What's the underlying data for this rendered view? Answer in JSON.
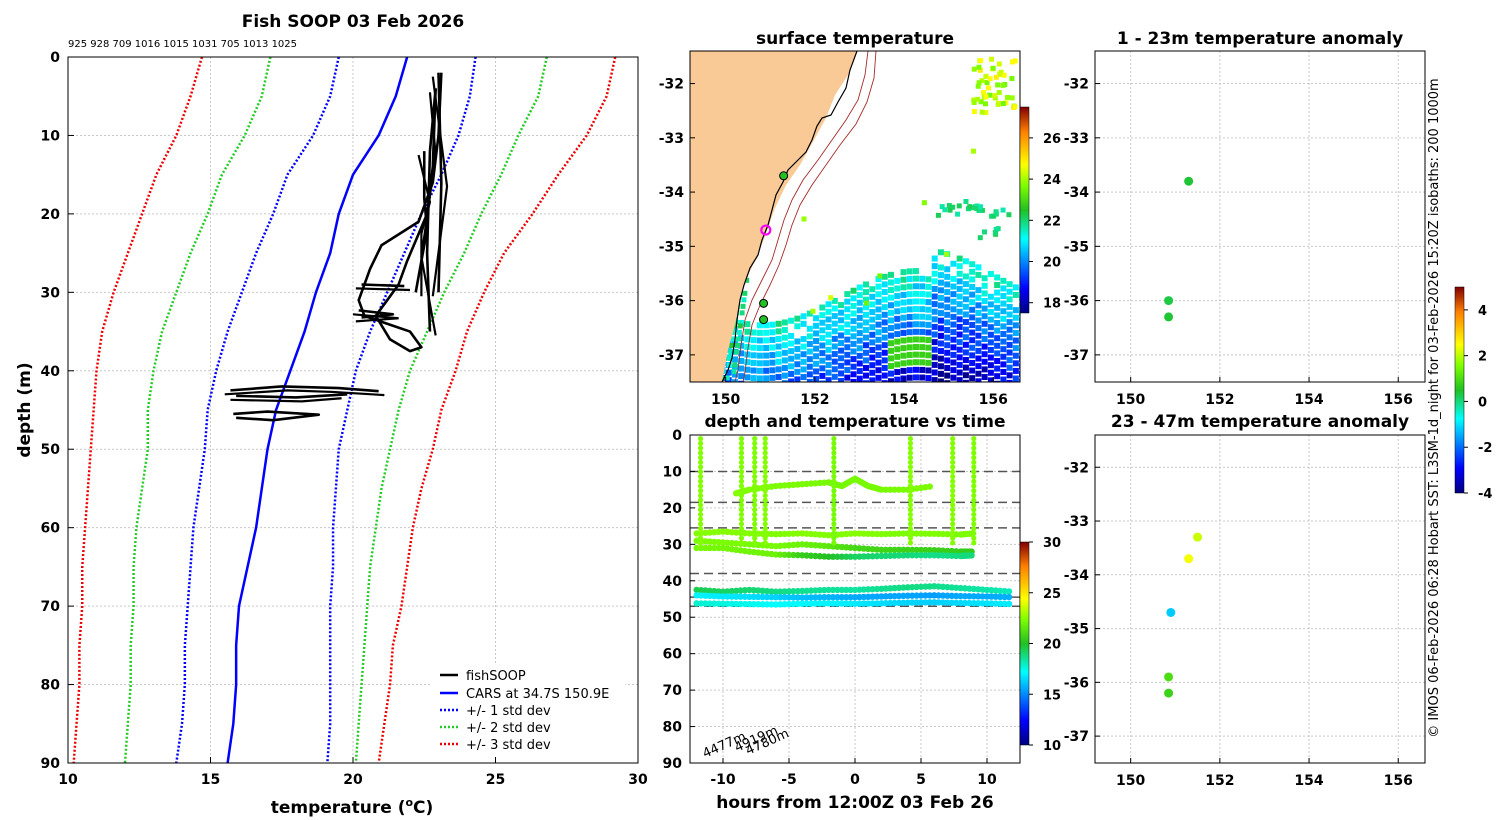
{
  "colors": {
    "fishsoop": "#000000",
    "cars": "#0000ff",
    "std1": "#0000ff",
    "std2": "#22cc22",
    "std3": "#ee0000",
    "land": "#f9c996",
    "isobath": "#a52a2a"
  },
  "chart_data": [
    {
      "type": "line",
      "id": "profile",
      "title": "Fish SOOP 03 Feb 2026",
      "subtitle": "925 928 709 1016 1015 1031 705 1013 1025",
      "xlabel": "temperature",
      "xunit": "(",
      "xunit_sup": "o",
      "xunit_end": "C)",
      "ylabel": "depth (m)",
      "xlim": [
        10,
        30
      ],
      "ylim": [
        0,
        90
      ],
      "xticks": [
        10,
        15,
        20,
        25,
        30
      ],
      "yticks": [
        0,
        10,
        20,
        30,
        40,
        50,
        60,
        70,
        80,
        90
      ],
      "legend": [
        "fishSOOP",
        "CARS at 34.7S 150.9E",
        "+/- 1 std dev",
        "+/- 2 std dev",
        "+/- 3 std dev"
      ],
      "legend_position": "bottom-right",
      "depth": [
        0,
        5,
        10,
        15,
        20,
        25,
        30,
        35,
        40,
        45,
        50,
        55,
        60,
        65,
        70,
        75,
        80,
        85,
        90
      ],
      "cars": [
        21.9,
        21.5,
        20.9,
        20.0,
        19.5,
        19.2,
        18.7,
        18.3,
        17.8,
        17.3,
        17.0,
        16.8,
        16.6,
        16.3,
        16.0,
        15.9,
        15.9,
        15.8,
        15.6
      ],
      "std1_low": [
        19.5,
        19.2,
        18.6,
        17.7,
        17.2,
        16.6,
        16.1,
        15.6,
        15.2,
        14.9,
        14.8,
        14.6,
        14.4,
        14.3,
        14.2,
        14.1,
        14.1,
        14.0,
        13.8
      ],
      "std1_high": [
        24.3,
        24.1,
        23.7,
        23.1,
        22.4,
        21.8,
        21.2,
        20.6,
        20.1,
        19.8,
        19.5,
        19.4,
        19.3,
        19.3,
        19.2,
        19.2,
        19.2,
        19.2,
        19.1
      ],
      "std2_low": [
        17.1,
        16.8,
        16.2,
        15.4,
        14.9,
        14.3,
        13.8,
        13.3,
        13.0,
        12.8,
        12.8,
        12.6,
        12.4,
        12.3,
        12.3,
        12.2,
        12.2,
        12.1,
        12.0
      ],
      "std2_high": [
        26.8,
        26.5,
        25.8,
        25.2,
        24.5,
        23.9,
        23.2,
        22.6,
        22.0,
        21.6,
        21.3,
        21.0,
        20.8,
        20.6,
        20.5,
        20.4,
        20.3,
        20.2,
        20.1
      ],
      "std3_low": [
        14.7,
        14.3,
        13.8,
        13.1,
        12.6,
        12.1,
        11.6,
        11.2,
        11.0,
        10.9,
        10.8,
        10.7,
        10.6,
        10.5,
        10.5,
        10.4,
        10.4,
        10.3,
        10.2
      ],
      "std3_high": [
        29.2,
        28.9,
        28.2,
        27.2,
        26.3,
        25.3,
        24.6,
        24.0,
        23.6,
        23.1,
        22.8,
        22.4,
        22.1,
        21.9,
        21.7,
        21.4,
        21.3,
        21.1,
        20.9
      ],
      "fishsoop_tracks": [
        [
          [
            23.1,
            2
          ],
          [
            23.0,
            10
          ],
          [
            22.8,
            16
          ],
          [
            22.3,
            21
          ],
          [
            21.0,
            24
          ],
          [
            20.6,
            27
          ],
          [
            20.2,
            31
          ],
          [
            20.4,
            33
          ],
          [
            21.2,
            34
          ],
          [
            22.0,
            35
          ],
          [
            22.4,
            37
          ],
          [
            22.0,
            37.5
          ],
          [
            21.3,
            36
          ],
          [
            20.8,
            33
          ],
          [
            21.2,
            31
          ],
          [
            21.6,
            29
          ],
          [
            21.9,
            26
          ],
          [
            22.6,
            20
          ],
          [
            22.8,
            14
          ],
          [
            22.9,
            4
          ]
        ],
        [
          [
            22.9,
            4
          ],
          [
            22.7,
            12
          ],
          [
            22.6,
            25
          ],
          [
            22.7,
            35
          ]
        ],
        [
          [
            23.0,
            2
          ],
          [
            23.1,
            16
          ],
          [
            23.0,
            30
          ]
        ],
        [
          [
            22.5,
            12
          ],
          [
            22.5,
            18
          ],
          [
            22.6,
            22
          ],
          [
            22.2,
            30
          ]
        ],
        [
          [
            20.3,
            29
          ],
          [
            21.8,
            29.2
          ]
        ],
        [
          [
            20.2,
            32.3
          ],
          [
            21.4,
            32.8
          ],
          [
            20.3,
            33.2
          ]
        ],
        [
          [
            15.7,
            42.5
          ],
          [
            17.5,
            42.0
          ],
          [
            19.5,
            42.2
          ],
          [
            20.9,
            42.6
          ]
        ],
        [
          [
            15.9,
            43.2
          ],
          [
            18.0,
            43.4
          ],
          [
            19.8,
            43.0
          ]
        ],
        [
          [
            15.8,
            45.5
          ],
          [
            17.0,
            45.2
          ],
          [
            18.8,
            45.6
          ],
          [
            17.2,
            46.3
          ],
          [
            15.9,
            46.0
          ]
        ]
      ]
    },
    {
      "type": "heatmap",
      "id": "sst_map",
      "title": "surface temperature",
      "xlim": [
        149.2,
        156.6
      ],
      "ylim": [
        -37.5,
        -31.4
      ],
      "xticks": [
        150,
        152,
        154,
        156
      ],
      "yticks": [
        -32,
        -33,
        -34,
        -35,
        -36,
        -37
      ],
      "colorbar_range": [
        17.5,
        27.5
      ],
      "colorbar_ticks": [
        18,
        20,
        22,
        24,
        26
      ],
      "stations": [
        [
          151.3,
          -33.7
        ],
        [
          150.85,
          -36.05
        ],
        [
          150.85,
          -36.35
        ]
      ],
      "cars_location": [
        150.9,
        -34.7
      ]
    },
    {
      "type": "scatter",
      "id": "depth_time",
      "title": "depth and temperature vs time",
      "xlabel": "hours from 12:00Z 03 Feb 26",
      "xlim": [
        -12.5,
        12.5
      ],
      "ylim": [
        0,
        90
      ],
      "xticks": [
        -10,
        -5,
        0,
        5,
        10
      ],
      "yticks": [
        0,
        10,
        20,
        30,
        40,
        50,
        60,
        70,
        80,
        90
      ],
      "reference_depths": [
        10,
        18.5,
        25.5,
        38,
        44.5,
        47
      ],
      "bottom_depth_labels": [
        "4477m",
        "4919m",
        "4780m"
      ],
      "colorbar_range": [
        10,
        30
      ],
      "colorbar_ticks": [
        10,
        15,
        20,
        25,
        30
      ],
      "tracks": [
        {
          "hours": [
            -12,
            -10,
            -8,
            -6,
            -4,
            -2,
            0,
            2,
            4,
            6,
            8,
            9
          ],
          "depth": [
            27,
            26.5,
            27,
            27.2,
            27,
            27.5,
            27,
            27.2,
            27,
            27.1,
            27.3,
            27
          ],
          "temp": [
            22.5,
            22.5,
            22.5,
            22.4,
            22.5,
            22.4,
            22.5,
            22.4,
            22.3,
            22.4,
            22.3,
            22.4
          ]
        },
        {
          "hours": [
            -12,
            -10,
            -8,
            -6,
            -4,
            -2,
            0,
            2,
            4,
            6,
            8,
            9
          ],
          "depth": [
            29,
            29.5,
            30,
            30.5,
            30,
            30.5,
            31,
            31.5,
            31.5,
            31.6,
            32,
            32
          ],
          "temp": [
            22.3,
            22.3,
            22.2,
            22.2,
            21.9,
            21.5,
            20.9,
            20.8,
            20.7,
            20.6,
            20.5,
            20.4
          ]
        },
        {
          "hours": [
            -12,
            -10,
            -8,
            -6,
            -4,
            -2,
            0,
            2,
            4,
            6,
            8,
            9
          ],
          "depth": [
            31,
            31,
            32,
            32.8,
            33,
            33.4,
            33.4,
            33.2,
            33,
            33,
            33.2,
            33
          ],
          "temp": [
            22.2,
            22.1,
            22.0,
            21.9,
            20.5,
            20.0,
            19.2,
            19.0,
            18.9,
            18.7,
            18.8,
            18.9
          ]
        },
        {
          "hours": [
            -9,
            -8,
            -6,
            -4,
            -2,
            -1,
            0,
            1,
            2,
            4,
            6
          ],
          "depth": [
            16,
            15,
            14,
            13.5,
            13,
            14,
            12,
            14,
            15,
            15,
            14
          ],
          "temp": [
            22.5,
            22.4,
            22.3,
            22.3,
            22.2,
            22.1,
            22.2,
            22.2,
            22.2,
            22.3,
            22.3
          ]
        },
        {
          "hours": [
            -12,
            -10,
            -8,
            -6,
            -4,
            -2,
            0,
            2,
            4,
            6,
            8,
            10,
            12
          ],
          "depth": [
            42.5,
            43,
            42.5,
            43,
            42.8,
            42.5,
            42.5,
            42.2,
            41.8,
            41.5,
            42,
            42.5,
            43
          ],
          "temp": [
            19.4,
            19.2,
            19.0,
            18.8,
            18.6,
            18.5,
            18.4,
            18.6,
            18.8,
            18.7,
            18.5,
            18.3,
            18.0
          ]
        },
        {
          "hours": [
            -12,
            -10,
            -8,
            -6,
            -4,
            -2,
            0,
            2,
            4,
            6,
            8,
            10,
            12
          ],
          "depth": [
            44,
            44.3,
            44.4,
            44.5,
            44.6,
            44.5,
            44.5,
            44.3,
            44.1,
            44.0,
            44.2,
            44.3,
            44.5
          ],
          "temp": [
            17.0,
            16.8,
            16.6,
            16.3,
            16.0,
            15.8,
            15.6,
            15.5,
            15.5,
            15.4,
            15.6,
            15.6,
            15.7
          ]
        },
        {
          "hours": [
            -12,
            -10,
            -8,
            -6,
            -4,
            -2,
            0,
            2,
            4,
            6,
            8,
            10,
            12
          ],
          "depth": [
            46.2,
            46.3,
            46.4,
            46.5,
            46.3,
            46.2,
            46.3,
            46.2,
            46.0,
            45.9,
            46.1,
            46.2,
            46.4
          ],
          "temp": [
            17.8,
            17.6,
            17.4,
            17.2,
            17.1,
            17.0,
            16.8,
            16.6,
            16.4,
            16.3,
            16.5,
            16.7,
            16.9
          ]
        }
      ],
      "casts": [
        {
          "hour": -11.7,
          "temp": 22.5
        },
        {
          "hour": -8.6,
          "temp": 22.4
        },
        {
          "hour": -7.6,
          "temp": 22.4
        },
        {
          "hour": -6.8,
          "temp": 22.5
        },
        {
          "hour": -1.6,
          "temp": 22.2
        },
        {
          "hour": 4.2,
          "temp": 22.5
        },
        {
          "hour": 7.4,
          "temp": 22.5
        },
        {
          "hour": 9.0,
          "temp": 22.4
        }
      ]
    },
    {
      "type": "scatter",
      "id": "anomaly_top",
      "title": "1 - 23m temperature anomaly",
      "xlim": [
        149.2,
        156.6
      ],
      "ylim": [
        -37.5,
        -31.4
      ],
      "yticks": [
        -32,
        -33,
        -34,
        -35,
        -36,
        -37
      ],
      "points": [
        [
          151.3,
          -33.8,
          0.4
        ],
        [
          150.85,
          -36.0,
          0.3
        ],
        [
          150.85,
          -36.3,
          0.4
        ]
      ]
    },
    {
      "type": "scatter",
      "id": "anomaly_bottom",
      "title": "23 - 47m temperature anomaly",
      "xlim": [
        149.2,
        156.6
      ],
      "ylim": [
        -37.5,
        -31.4
      ],
      "xticks": [
        150,
        152,
        154,
        156
      ],
      "yticks": [
        -32,
        -33,
        -34,
        -35,
        -36,
        -37
      ],
      "colorbar_range": [
        -4,
        5
      ],
      "colorbar_ticks": [
        -4,
        -2,
        0,
        2,
        4
      ],
      "points": [
        [
          151.5,
          -33.3,
          2.1
        ],
        [
          151.3,
          -33.7,
          2.4
        ],
        [
          150.9,
          -34.7,
          -1.2
        ],
        [
          150.85,
          -35.9,
          1.0
        ],
        [
          150.85,
          -36.2,
          0.8
        ]
      ]
    }
  ],
  "side_note": "© IMOS 06-Feb-2026 06:28 Hobart SST: L3SM-1d_night for 03-Feb-2026 15:20Z isobaths: 200  1000m"
}
